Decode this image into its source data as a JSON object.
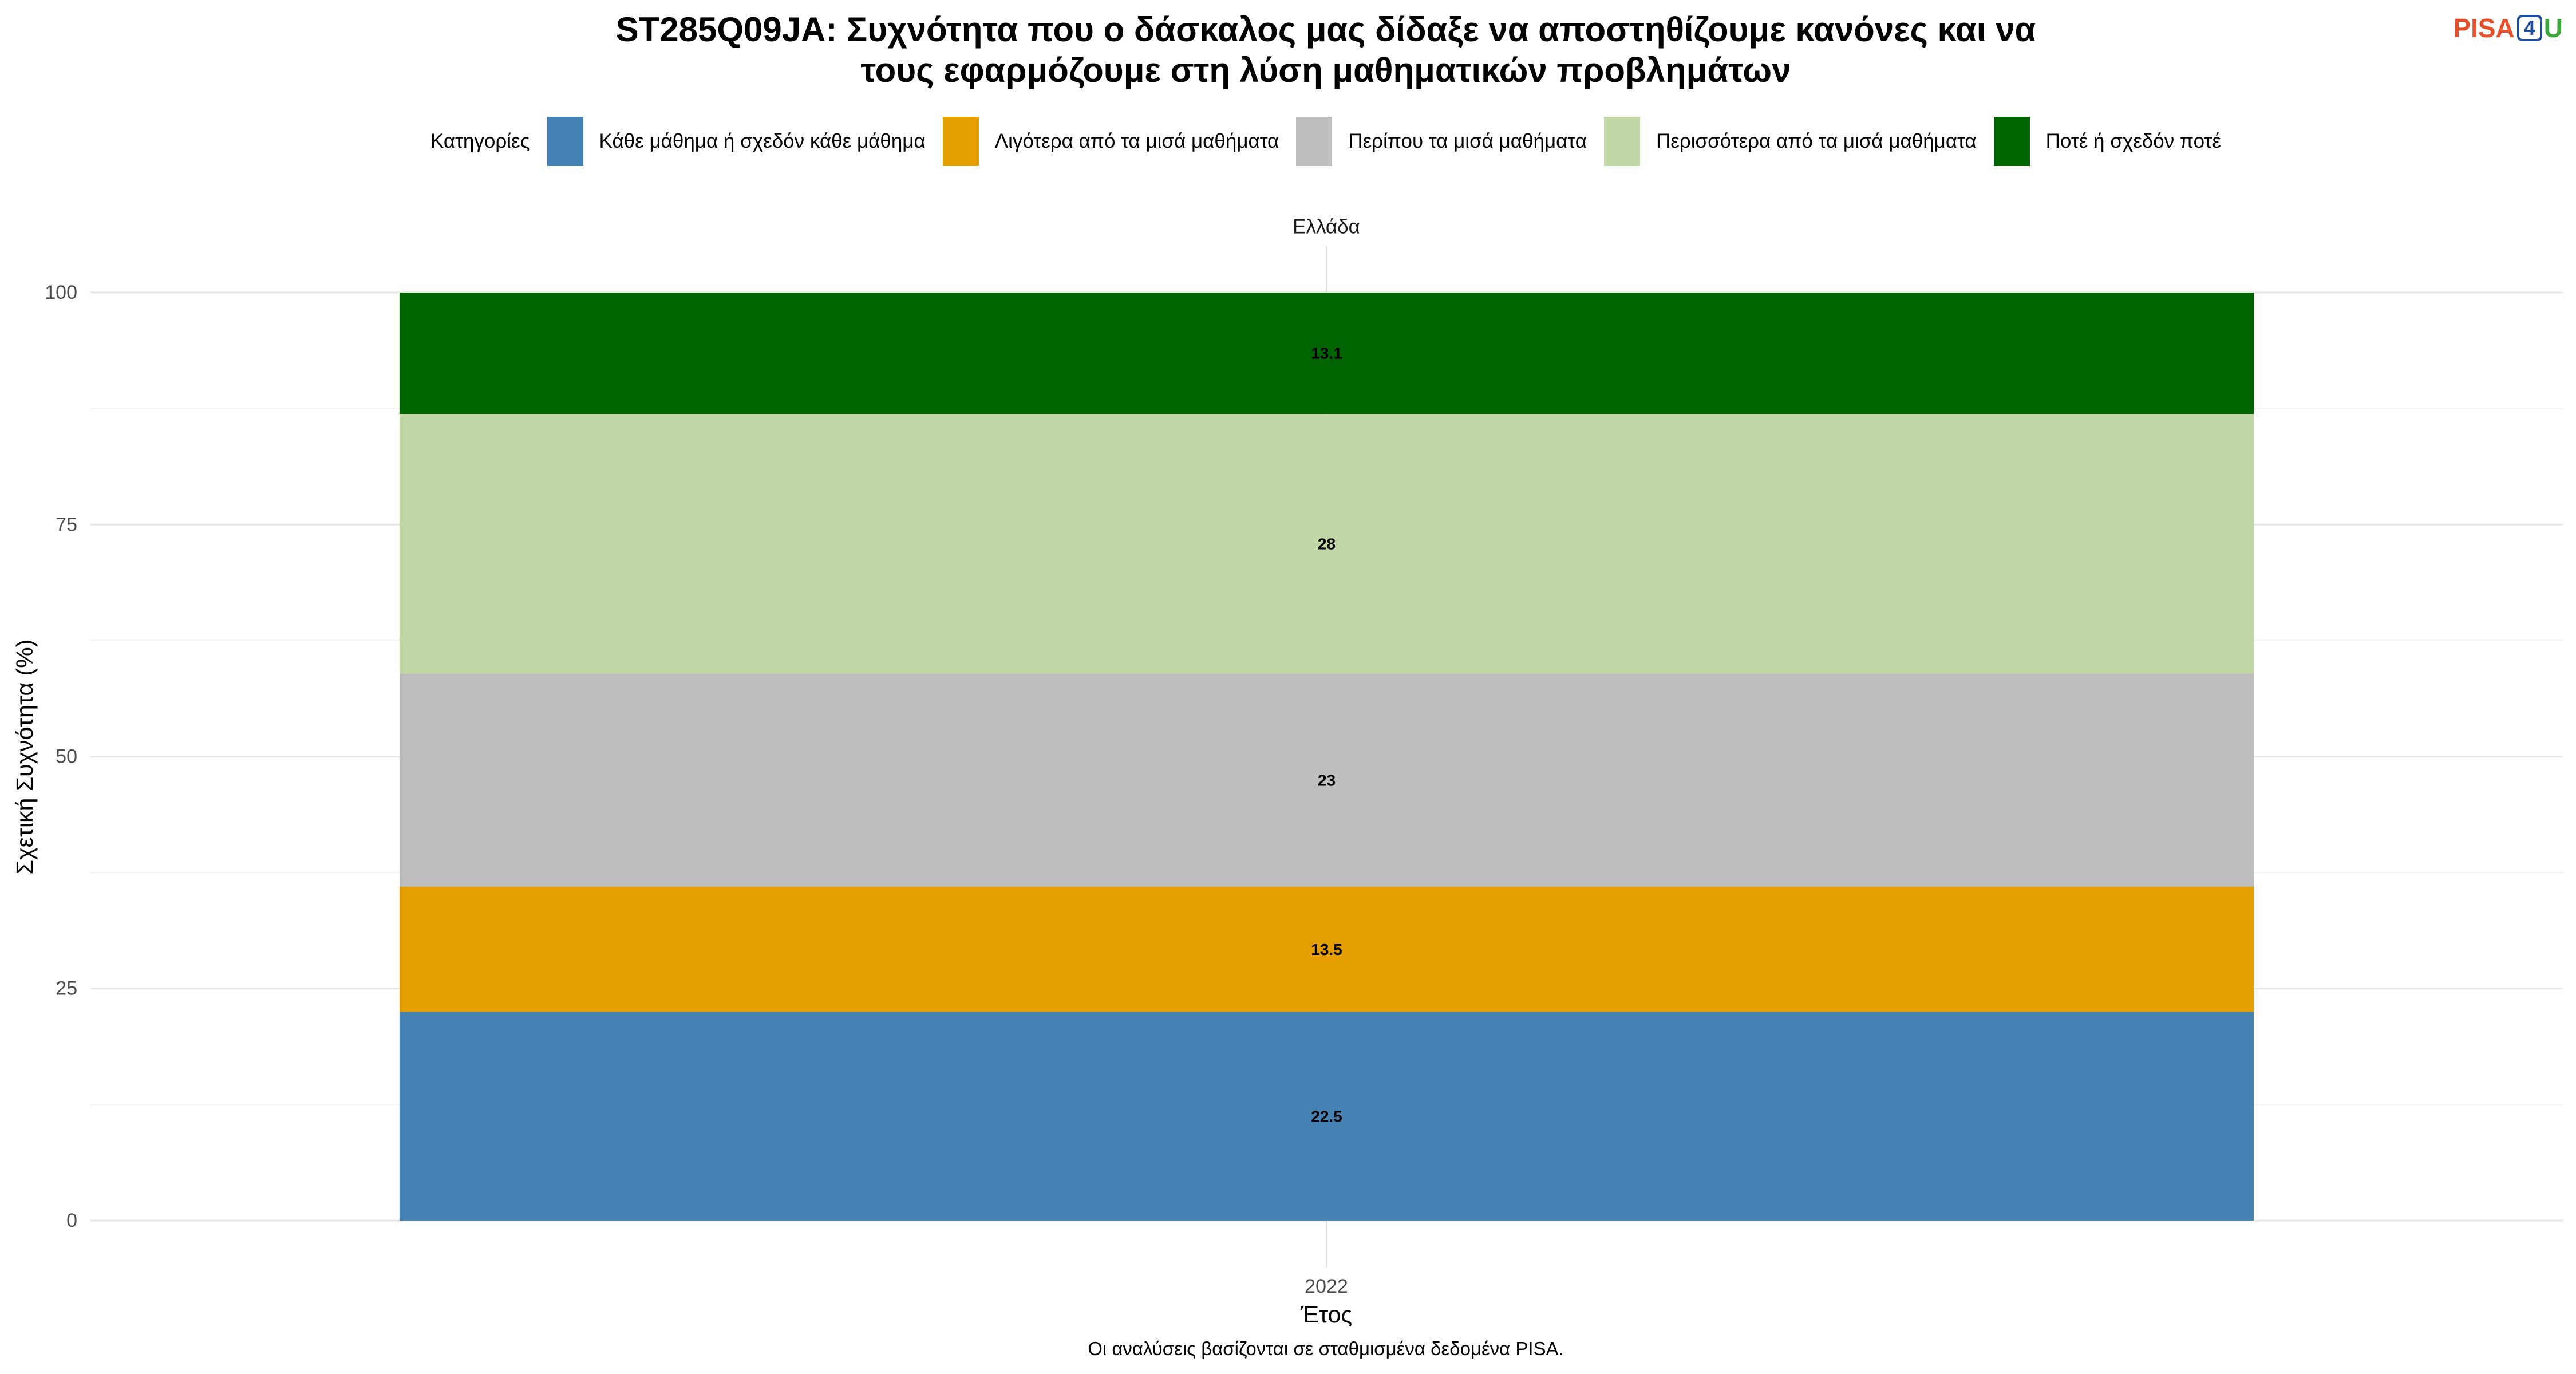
{
  "logo": {
    "part1": "PISA",
    "part2": "4",
    "part3": "U",
    "color_part1": "#E4502C",
    "color_part2": "#1F4F9E",
    "color_part3": "#3DA63A"
  },
  "chart_data": {
    "type": "bar",
    "stacked": true,
    "title": [
      "ST285Q09JA: Συχνότητα που ο δάσκαλος μας δίδαξε να αποστηθίζουμε κανόνες και να",
      "τους εφαρμόζουμε στη λύση μαθηματικών προβλημάτων"
    ],
    "facet": "Ελλάδα",
    "categories": [
      "2022"
    ],
    "xlabel": "Έτος",
    "ylabel": "Σχετική Συχνότητα (%)",
    "ylim": [
      0,
      100
    ],
    "yticks": [
      0,
      25,
      50,
      75,
      100
    ],
    "grid": true,
    "legend": {
      "title": "Κατηγορίες",
      "position": "top"
    },
    "series": [
      {
        "name": "Κάθε μάθημα ή σχεδόν κάθε μάθημα",
        "values": [
          22.5
        ],
        "color": "#4682B4"
      },
      {
        "name": "Λιγότερα από τα μισά μαθήματα",
        "values": [
          13.5
        ],
        "color": "#E69F00"
      },
      {
        "name": "Περίπου τα μισά μαθήματα",
        "values": [
          23
        ],
        "color": "#BEBEBE"
      },
      {
        "name": "Περισσότερα από τα μισά μαθήματα",
        "values": [
          28
        ],
        "color": "#C3D7A6"
      },
      {
        "name": "Ποτέ ή σχεδόν ποτέ",
        "values": [
          13.1
        ],
        "color": "#006400"
      }
    ],
    "caption": "Οι αναλύσεις βασίζονται σε σταθμισμένα δεδομένα PISA."
  }
}
